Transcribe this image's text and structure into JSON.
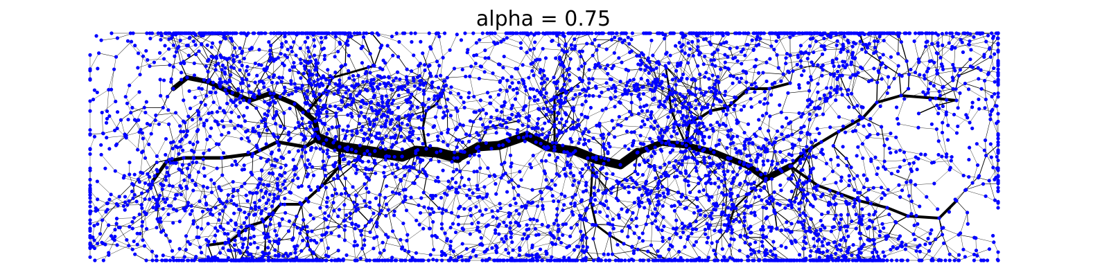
{
  "title": "alpha = 0.75",
  "colors": {
    "background": "#ffffff",
    "edge": "#000000",
    "node": "#0000ff",
    "text": "#000000"
  }
}
